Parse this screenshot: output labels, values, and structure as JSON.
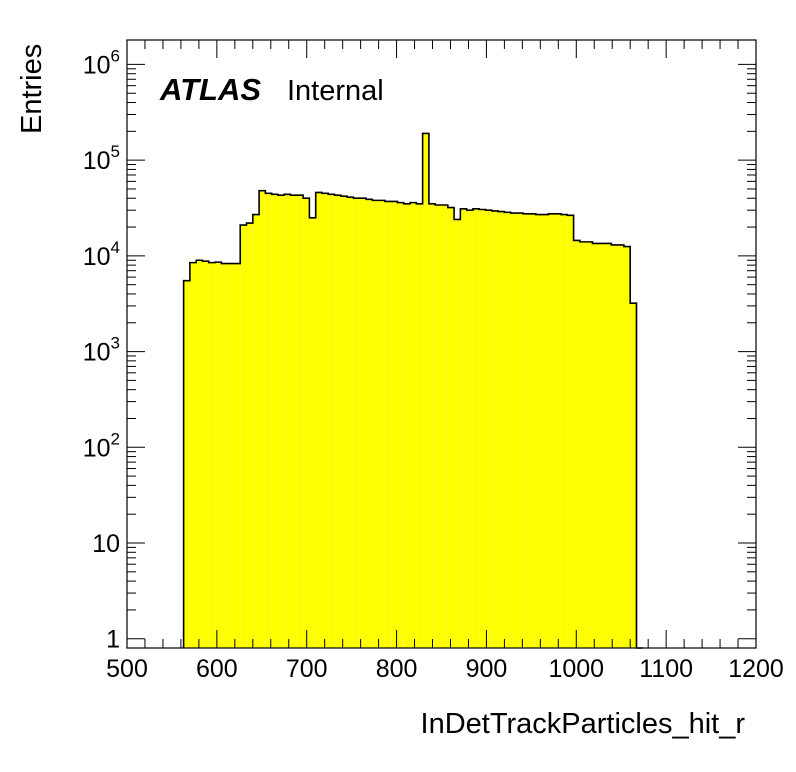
{
  "chart_data": {
    "type": "histogram",
    "xlabel": "InDetTrackParticles_hit_r",
    "ylabel": "Entries",
    "xlim": [
      500,
      1200
    ],
    "ylim": [
      0.8,
      1800000
    ],
    "y_scale": "log",
    "x_ticks": [
      "500",
      "600",
      "700",
      "800",
      "900",
      "1000",
      "1100",
      "1200"
    ],
    "y_ticks": [
      {
        "value": 1,
        "label": "1",
        "exp": ""
      },
      {
        "value": 10,
        "label": "10",
        "exp": ""
      },
      {
        "value": 100,
        "label": "10",
        "exp": "2"
      },
      {
        "value": 1000,
        "label": "10",
        "exp": "3"
      },
      {
        "value": 10000,
        "label": "10",
        "exp": "4"
      },
      {
        "value": 100000,
        "label": "10",
        "exp": "5"
      },
      {
        "value": 1000000,
        "label": "10",
        "exp": "6"
      }
    ],
    "fill_color": "#ffff00",
    "line_color": "#000000",
    "grid": false,
    "label": {
      "experiment": "ATLAS",
      "status": "Internal"
    },
    "bin_width": 7,
    "bin_low_edges": [
      563,
      570,
      577,
      584,
      591,
      598,
      605,
      612,
      619,
      626,
      633,
      640,
      647,
      654,
      661,
      668,
      675,
      682,
      689,
      696,
      703,
      710,
      717,
      724,
      731,
      738,
      745,
      752,
      759,
      766,
      773,
      780,
      787,
      794,
      801,
      808,
      815,
      822,
      829,
      836,
      843,
      850,
      857,
      864,
      871,
      878,
      885,
      892,
      899,
      906,
      913,
      920,
      927,
      934,
      941,
      948,
      955,
      962,
      969,
      976,
      983,
      990,
      997,
      1004,
      1011,
      1018,
      1025,
      1032,
      1039,
      1046,
      1053,
      1060,
      1067
    ],
    "values": [
      5500,
      8500,
      9000,
      8800,
      8500,
      8600,
      8300,
      8300,
      8300,
      21000,
      22000,
      27000,
      48000,
      45000,
      44000,
      43000,
      44000,
      43000,
      43000,
      40000,
      25000,
      46000,
      45000,
      44000,
      43000,
      42000,
      41000,
      40000,
      40000,
      39000,
      38000,
      38000,
      37000,
      37000,
      36000,
      35000,
      36000,
      35000,
      190000,
      35000,
      34000,
      34000,
      32000,
      24000,
      31000,
      30000,
      31000,
      30500,
      30000,
      29500,
      29000,
      28500,
      28000,
      28000,
      27500,
      27500,
      27000,
      27000,
      27500,
      27500,
      27000,
      26500,
      14500,
      14000,
      14000,
      13500,
      13500,
      13500,
      13000,
      13000,
      12500,
      3200,
      0
    ]
  }
}
